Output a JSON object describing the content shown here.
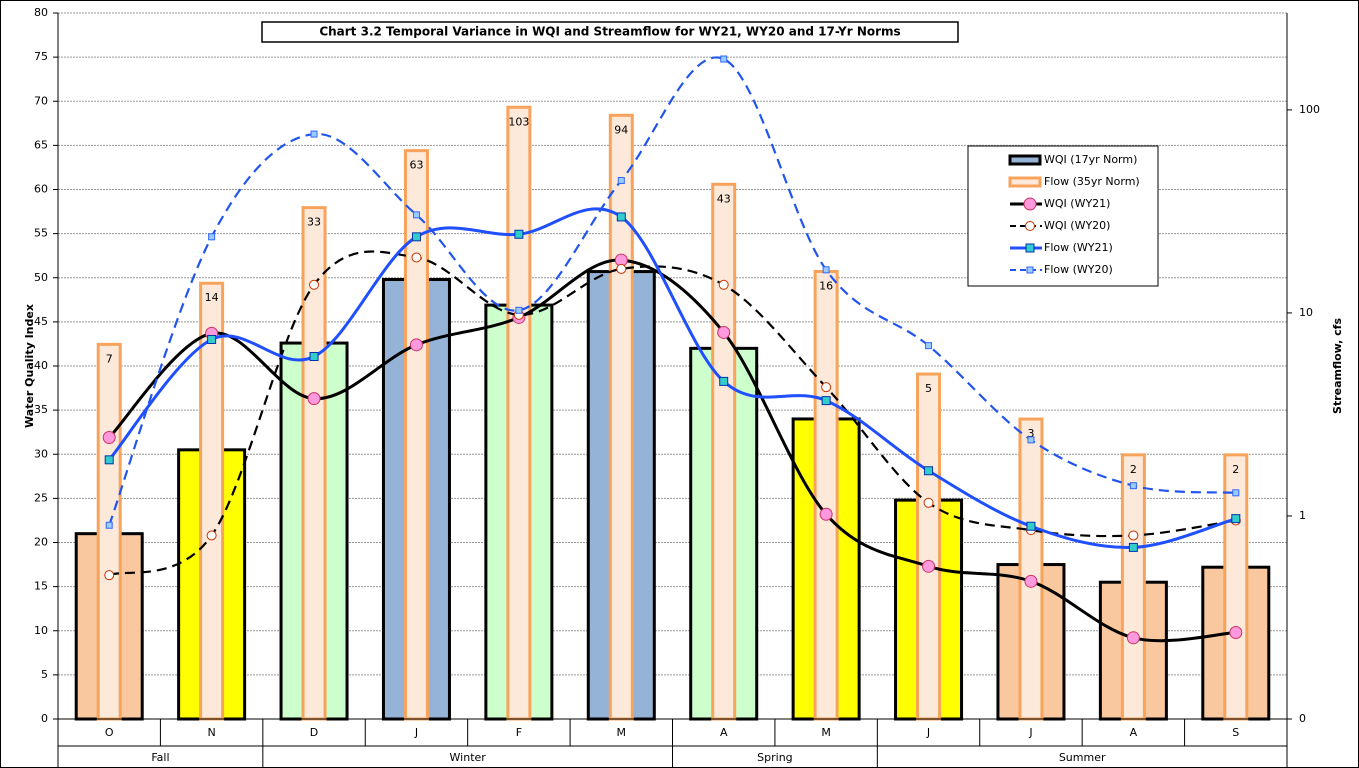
{
  "chart_data": {
    "type": "bar",
    "title": "Chart 3.2  Temporal Variance in WQI and Streamflow for WY21, WY20 and 17-Yr Norms",
    "y_label": "Water Quality Index",
    "y2_label": "Streamflow, cfs",
    "categories": [
      "O",
      "N",
      "D",
      "J",
      "F",
      "M",
      "A",
      "M",
      "J",
      "J",
      "A",
      "S"
    ],
    "category_groups": [
      "Fall",
      "Fall",
      "Winter",
      "Winter",
      "Winter",
      "Winter",
      "Spring",
      "Spring",
      "Summer",
      "Summer",
      "Summer",
      "Summer"
    ],
    "ylim": [
      0,
      80
    ],
    "yticks": [
      0,
      5,
      10,
      15,
      20,
      25,
      30,
      35,
      40,
      45,
      50,
      55,
      60,
      65,
      70,
      75,
      80
    ],
    "y2lim": [
      0.1,
      300
    ],
    "y2scale": "log",
    "y2ticks": [
      {
        "value": 0.1,
        "label": "0"
      },
      1,
      10,
      100
    ],
    "grid": true,
    "legend_position": "right",
    "series": [
      {
        "name": "WQI (17yr Norm)",
        "type": "bar",
        "axis": "y",
        "color": "#95b3d7",
        "colors": [
          "#fac89e",
          "#ffff00",
          "#ccffcc",
          "#95b3d7",
          "#ccffcc",
          "#95b3d7",
          "#ccffcc",
          "#ffff00",
          "#ffff00",
          "#fac89e",
          "#fac89e",
          "#fac89e"
        ],
        "values": [
          21,
          30.5,
          42.6,
          49.8,
          46.9,
          50.7,
          42,
          34,
          24.8,
          17.5,
          15.5,
          17.2
        ]
      },
      {
        "name": "Flow (35yr Norm)",
        "type": "bar",
        "axis": "y2",
        "color": "#f7a35c",
        "values": [
          7,
          14,
          33,
          63,
          103,
          94,
          43,
          16,
          5,
          3,
          2,
          2
        ]
      },
      {
        "name": "WQI (WY21)",
        "type": "line",
        "axis": "y",
        "color": "#000000",
        "dash": false,
        "marker": "circle",
        "marker_color": "#ff99dd",
        "values": [
          31.9,
          43.7,
          36.3,
          42.4,
          45.5,
          52,
          43.8,
          23.2,
          17.3,
          15.6,
          9.2,
          9.8
        ]
      },
      {
        "name": "WQI (WY20)",
        "type": "line",
        "axis": "y",
        "color": "#000000",
        "dash": true,
        "marker": "circle",
        "marker_color": "#ffffff",
        "values": [
          16.3,
          20.8,
          49.2,
          52.3,
          45.8,
          51,
          49.2,
          37.6,
          24.5,
          21.4,
          20.8,
          22.5
        ]
      },
      {
        "name": "Flow (WY21)",
        "type": "line",
        "axis": "y2",
        "color": "#1f4fff",
        "dash": false,
        "marker": "square",
        "marker_color": "#33cccc",
        "values": [
          1.89,
          7.4,
          6.1,
          23.7,
          24.4,
          29.7,
          4.6,
          3.7,
          1.67,
          0.89,
          0.7,
          0.97
        ]
      },
      {
        "name": "Flow (WY20)",
        "type": "line",
        "axis": "y2",
        "color": "#2255ee",
        "dash": true,
        "marker": "square",
        "marker_color": "#99ccff",
        "values": [
          0.9,
          23.7,
          76,
          30.4,
          10.3,
          44.9,
          178,
          16.3,
          6.9,
          2.37,
          1.41,
          1.3
        ]
      }
    ]
  }
}
